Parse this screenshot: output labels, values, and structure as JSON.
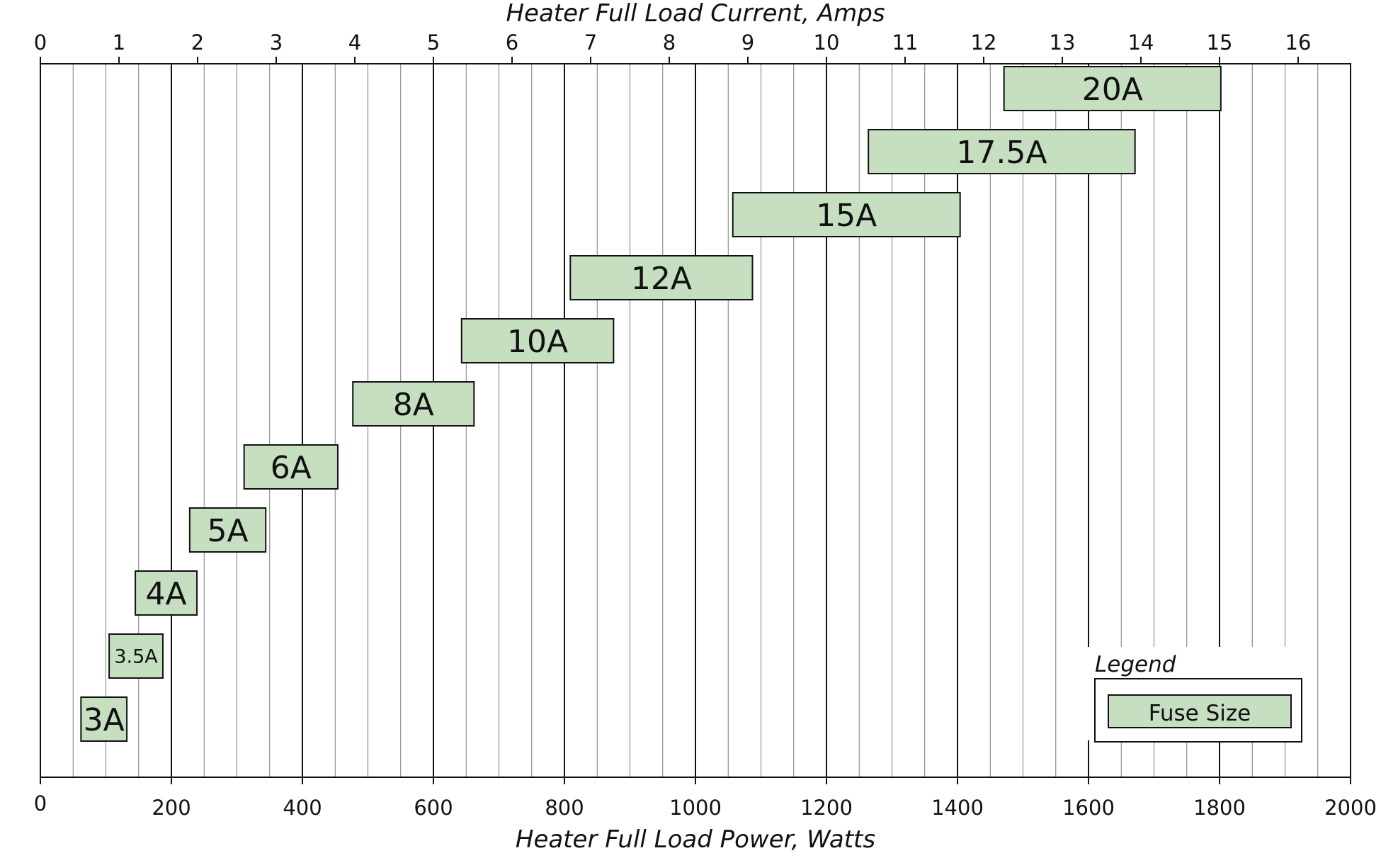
{
  "chart_data": {
    "type": "bar",
    "orientation": "floating-horizontal",
    "top_axis": {
      "label": "Heater Full Load Current, Amps",
      "range": [
        0,
        16.667
      ],
      "ticks": [
        0,
        1,
        2,
        3,
        4,
        5,
        6,
        7,
        8,
        9,
        10,
        11,
        12,
        13,
        14,
        15,
        16
      ]
    },
    "bottom_axis": {
      "label": "Heater Full Load Power, Watts",
      "range": [
        0,
        2000
      ],
      "ticks": [
        0,
        200,
        400,
        600,
        800,
        1000,
        1200,
        1400,
        1600,
        1800,
        2000
      ]
    },
    "grid": {
      "minor_step_watts": 50,
      "major_step_watts": 200
    },
    "series": [
      {
        "label": "3A",
        "start": 62,
        "end": 132
      },
      {
        "label": "3.5A",
        "start": 105,
        "end": 187
      },
      {
        "label": "4A",
        "start": 145,
        "end": 239
      },
      {
        "label": "5A",
        "start": 228,
        "end": 344
      },
      {
        "label": "6A",
        "start": 311,
        "end": 454
      },
      {
        "label": "8A",
        "start": 477,
        "end": 662
      },
      {
        "label": "10A",
        "start": 643,
        "end": 875
      },
      {
        "label": "12A",
        "start": 809,
        "end": 1087
      },
      {
        "label": "15A",
        "start": 1057,
        "end": 1404
      },
      {
        "label": "17.5A",
        "start": 1264,
        "end": 1671
      },
      {
        "label": "20A",
        "start": 1471,
        "end": 1802
      }
    ],
    "legend": {
      "title": "Legend",
      "label": "Fuse Size",
      "position": "bottom-right"
    }
  }
}
